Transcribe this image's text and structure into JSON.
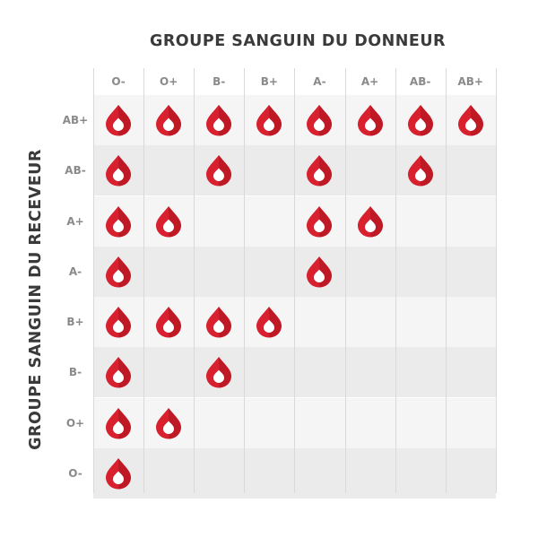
{
  "donor_axis_title": "GROUPE SANGUIN DU DONNEUR",
  "receiver_axis_title": "GROUPE SANGUIN DU RECEVEUR",
  "donor_groups": [
    "O-",
    "O+",
    "B-",
    "B+",
    "A-",
    "A+",
    "AB-",
    "AB+"
  ],
  "receiver_groups": [
    "AB+",
    "AB-",
    "A+",
    "A-",
    "B+",
    "B-",
    "O+",
    "O-"
  ],
  "compatibility": [
    [
      1,
      1,
      1,
      1,
      1,
      1,
      1,
      1
    ],
    [
      1,
      0,
      1,
      0,
      1,
      0,
      1,
      0
    ],
    [
      1,
      1,
      0,
      0,
      1,
      1,
      0,
      0
    ],
    [
      1,
      0,
      0,
      0,
      1,
      0,
      0,
      0
    ],
    [
      1,
      1,
      1,
      1,
      0,
      0,
      0,
      0
    ],
    [
      1,
      0,
      1,
      0,
      0,
      0,
      0,
      0
    ],
    [
      1,
      1,
      0,
      0,
      0,
      0,
      0,
      0
    ],
    [
      1,
      0,
      0,
      0,
      0,
      0,
      0,
      0
    ]
  ],
  "colors": {
    "drop_main": "#d9202e",
    "drop_dark": "#a8141f",
    "drop_inner": "#ffffff",
    "row_stripe": "#ebebeb",
    "row_plain": "#f5f5f5",
    "title_text": "#3a3a3a",
    "header_text": "#8a8a8a"
  },
  "icon": "blood-drop-icon"
}
